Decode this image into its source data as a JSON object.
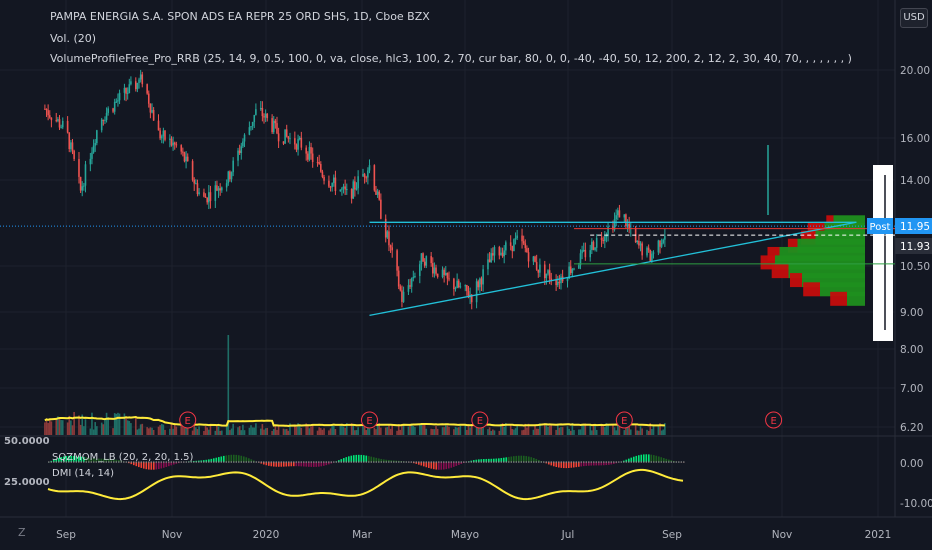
{
  "header": {
    "symbol_line": "PAMPA ENERGIA S.A. SPON ADS EA REPR 25 ORD SHS, 1D, Cboe BZX",
    "volume_line": "Vol. (20)",
    "profile_line": "VolumeProfileFree_Pro_RRB (25, 14, 9, 0.5, 100, 0, va, close, hlc3, 100, 2, 70, cur bar, 80, 0, 0, -40, -40, 50, 12, 200, 2, 12, 2, 30, 40, 70, , , , , , , )",
    "currency": "USD"
  },
  "indicator_pane": {
    "squeeze_label": "SQZMOM_LB (20, 2, 20, 1.5)",
    "dmi_label": "DMI (14, 14)",
    "left_scale_top": "50.0000",
    "left_scale_mid": "25.0000"
  },
  "badges": {
    "post_label": "Post",
    "last_price": "11.95",
    "second_price": "11.93",
    "earnings_letter": "E"
  },
  "bottom": {
    "timezone_icon": "Z"
  },
  "colors": {
    "up": "#26a69a",
    "down": "#ef5350",
    "trendline": "#22c0d8",
    "volume_ma": "#ffeb3b",
    "profile_green": "#1f8f1f",
    "profile_red": "#c40d0d",
    "price_badge": "#2196f3"
  },
  "chart_data": {
    "type": "candlestick",
    "price_axis_ticks": [
      "20.00",
      "16.00",
      "14.00",
      "12.00",
      "10.50",
      "9.00",
      "8.00",
      "7.00",
      "6.20",
      "0.00",
      "-10.00"
    ],
    "price_axis_visible": [
      "20.00",
      "16.00",
      "14.00",
      "10.50",
      "9.00",
      "8.00",
      "7.00",
      "6.20"
    ],
    "indicator_axis": [
      "0.00",
      "-10.00"
    ],
    "time_axis_labels": [
      "Sep",
      "Nov",
      "2020",
      "Mar",
      "Mayo",
      "Jul",
      "Sep",
      "Nov",
      "2021"
    ],
    "price_path": [
      [
        "2019-08-19",
        17.6
      ],
      [
        "2019-09-01",
        16.4
      ],
      [
        "2019-09-10",
        13.4
      ],
      [
        "2019-09-22",
        17.0
      ],
      [
        "2019-10-05",
        18.3
      ],
      [
        "2019-10-18",
        19.4
      ],
      [
        "2019-10-28",
        16.2
      ],
      [
        "2019-11-10",
        15.4
      ],
      [
        "2019-11-24",
        13.0
      ],
      [
        "2019-12-10",
        14.0
      ],
      [
        "2019-12-28",
        17.6
      ],
      [
        "2020-01-10",
        16.2
      ],
      [
        "2020-01-25",
        15.6
      ],
      [
        "2020-02-08",
        14.0
      ],
      [
        "2020-02-22",
        13.2
      ],
      [
        "2020-03-06",
        14.6
      ],
      [
        "2020-03-14",
        12.2
      ],
      [
        "2020-03-26",
        9.4
      ],
      [
        "2020-04-08",
        10.8
      ],
      [
        "2020-04-22",
        10.0
      ],
      [
        "2020-05-08",
        9.5
      ],
      [
        "2020-05-22",
        10.9
      ],
      [
        "2020-06-06",
        11.4
      ],
      [
        "2020-06-18",
        10.4
      ],
      [
        "2020-06-30",
        10.0
      ],
      [
        "2020-07-12",
        10.6
      ],
      [
        "2020-07-24",
        11.4
      ],
      [
        "2020-08-02",
        12.0
      ],
      [
        "2020-08-08",
        12.6
      ],
      [
        "2020-08-16",
        11.3
      ],
      [
        "2020-08-26",
        10.8
      ],
      [
        "2020-09-06",
        11.9
      ]
    ],
    "horizontal_lines": {
      "dotted_level": 11.95,
      "upper_triangle_level": 12.1,
      "dashed_level": 11.6
    },
    "triangle": {
      "lower_start": [
        "2020-03-06",
        8.9
      ],
      "lower_end": [
        "2020-12-31",
        12.1
      ]
    },
    "volume_spike_dates": [
      "2019-12-10",
      "2020-10-26"
    ],
    "earnings_dates": [
      "2019-11-15",
      "2020-03-06",
      "2020-05-13",
      "2020-08-10",
      "2020-11-10"
    ],
    "volume_profile": {
      "side": "right",
      "levels": [
        {
          "price": 12.1,
          "green": 0.35,
          "red": 0.15
        },
        {
          "price": 11.8,
          "green": 0.45,
          "red": 0.35
        },
        {
          "price": 11.5,
          "green": 0.55,
          "red": 0.3
        },
        {
          "price": 11.2,
          "green": 0.75,
          "red": 0.2
        },
        {
          "price": 10.9,
          "green": 0.95,
          "red": 0.25
        },
        {
          "price": 10.6,
          "green": 1.0,
          "red": 0.3
        },
        {
          "price": 10.3,
          "green": 0.85,
          "red": 0.35
        },
        {
          "price": 10.0,
          "green": 0.7,
          "red": 0.25
        },
        {
          "price": 9.7,
          "green": 0.5,
          "red": 0.35
        },
        {
          "price": 9.4,
          "green": 0.2,
          "red": 0.35
        }
      ]
    }
  }
}
